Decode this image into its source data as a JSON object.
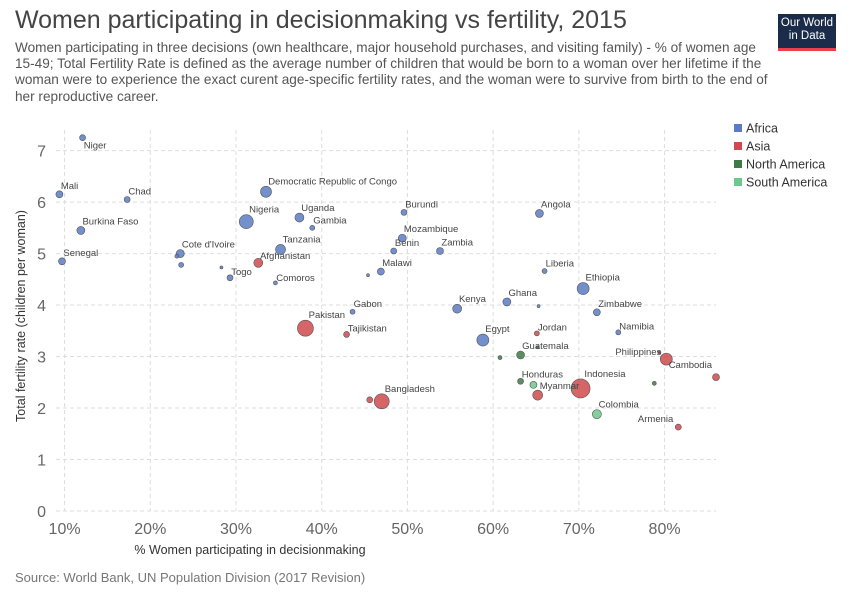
{
  "header": {
    "title": "Women participating in decisionmaking vs fertility, 2015",
    "subtitle": "Women participating in three decisions (own healthcare, major household purchases, and visiting family) - % of women age 15-49; Total Fertility Rate is defined as the average number of children that would be born to a woman over her lifetime if the woman were to experience the exact curent age-specific fertility rates, and the woman were to survive from birth to the end of her reproductive career.",
    "logo_line1": "Our World",
    "logo_line2": "in Data"
  },
  "footer": {
    "source": "Source: World Bank, UN Population Division (2017 Revision)"
  },
  "colors": {
    "Africa": "#5b7cc4",
    "Asia": "#cf4a4e",
    "North America": "#3f7a44",
    "South America": "#6cc98b"
  },
  "chart_data": {
    "type": "scatter",
    "xlabel": "% Women participating in decisionmaking",
    "ylabel": "Total fertility rate (children per woman)",
    "xlim": [
      9,
      86
    ],
    "ylim": [
      0,
      7.4
    ],
    "x_ticks": [
      10,
      20,
      30,
      40,
      50,
      60,
      70,
      80
    ],
    "x_tick_labels": [
      "10%",
      "20%",
      "30%",
      "40%",
      "50%",
      "60%",
      "70%",
      "80%"
    ],
    "y_ticks": [
      0,
      1,
      2,
      3,
      4,
      5,
      6,
      7
    ],
    "y_tick_labels": [
      "0",
      "1",
      "2",
      "3",
      "4",
      "5",
      "6",
      "7"
    ],
    "grid": true,
    "legend": {
      "placement": "right",
      "entries": [
        "Africa",
        "Asia",
        "North America",
        "South America"
      ]
    },
    "points": [
      {
        "label": "Niger",
        "x": 12.1,
        "y": 7.25,
        "group": "Africa",
        "size": 3
      },
      {
        "label": "Mali",
        "x": 9.4,
        "y": 6.15,
        "group": "Africa",
        "size": 3.5
      },
      {
        "label": "Chad",
        "x": 17.3,
        "y": 6.05,
        "group": "Africa",
        "size": 3
      },
      {
        "label": "Burkina Faso",
        "x": 11.9,
        "y": 5.45,
        "group": "Africa",
        "size": 4
      },
      {
        "label": "Senegal",
        "x": 9.7,
        "y": 4.85,
        "group": "Africa",
        "size": 3.5
      },
      {
        "label": "Cote d'Ivoire",
        "x": 23.5,
        "y": 5.0,
        "group": "Africa",
        "size": 4
      },
      {
        "label": "",
        "x": 23.1,
        "y": 4.95,
        "group": "Africa",
        "size": 2
      },
      {
        "label": "",
        "x": 23.6,
        "y": 4.78,
        "group": "Africa",
        "size": 2.5
      },
      {
        "label": "",
        "x": 28.3,
        "y": 4.73,
        "group": "Africa",
        "size": 1.5
      },
      {
        "label": "Togo",
        "x": 29.3,
        "y": 4.53,
        "group": "Africa",
        "size": 3
      },
      {
        "label": "Afghanistan",
        "x": 32.6,
        "y": 4.82,
        "group": "Asia",
        "size": 4.5
      },
      {
        "label": "Nigeria",
        "x": 31.2,
        "y": 5.62,
        "group": "Africa",
        "size": 7
      },
      {
        "label": "Democratic Republic of Congo",
        "x": 33.5,
        "y": 6.2,
        "group": "Africa",
        "size": 5.5
      },
      {
        "label": "Tanzania",
        "x": 35.2,
        "y": 5.08,
        "group": "Africa",
        "size": 5
      },
      {
        "label": "Comoros",
        "x": 34.6,
        "y": 4.43,
        "group": "Africa",
        "size": 2
      },
      {
        "label": "Uganda",
        "x": 37.4,
        "y": 5.7,
        "group": "Africa",
        "size": 4.5
      },
      {
        "label": "Gambia",
        "x": 38.9,
        "y": 5.5,
        "group": "Africa",
        "size": 2.5
      },
      {
        "label": "Gabon",
        "x": 43.6,
        "y": 3.87,
        "group": "Africa",
        "size": 2.5
      },
      {
        "label": "Pakistan",
        "x": 38.1,
        "y": 3.55,
        "group": "Asia",
        "size": 8
      },
      {
        "label": "Tajikistan",
        "x": 42.9,
        "y": 3.43,
        "group": "Asia",
        "size": 3
      },
      {
        "label": "",
        "x": 45.4,
        "y": 4.58,
        "group": "Africa",
        "size": 1.5
      },
      {
        "label": "Malawi",
        "x": 46.9,
        "y": 4.65,
        "group": "Africa",
        "size": 3.5
      },
      {
        "label": "Bangladesh",
        "x": 47.0,
        "y": 2.13,
        "group": "Asia",
        "size": 7.5
      },
      {
        "label": "",
        "x": 45.6,
        "y": 2.16,
        "group": "Asia",
        "size": 3
      },
      {
        "label": "Burundi",
        "x": 49.6,
        "y": 5.8,
        "group": "Africa",
        "size": 3
      },
      {
        "label": "Mozambique",
        "x": 49.4,
        "y": 5.3,
        "group": "Africa",
        "size": 4
      },
      {
        "label": "Benin",
        "x": 48.4,
        "y": 5.05,
        "group": "Africa",
        "size": 3
      },
      {
        "label": "Zambia",
        "x": 53.8,
        "y": 5.05,
        "group": "Africa",
        "size": 3.5
      },
      {
        "label": "Kenya",
        "x": 55.8,
        "y": 3.93,
        "group": "Africa",
        "size": 4.5
      },
      {
        "label": "Egypt",
        "x": 58.8,
        "y": 3.32,
        "group": "Africa",
        "size": 6
      },
      {
        "label": "Ghana",
        "x": 61.6,
        "y": 4.06,
        "group": "Africa",
        "size": 4
      },
      {
        "label": "",
        "x": 65.3,
        "y": 3.98,
        "group": "Africa",
        "size": 1.5
      },
      {
        "label": "Angola",
        "x": 65.4,
        "y": 5.78,
        "group": "Africa",
        "size": 4
      },
      {
        "label": "Liberia",
        "x": 66.0,
        "y": 4.66,
        "group": "Africa",
        "size": 2.5
      },
      {
        "label": "Jordan",
        "x": 65.1,
        "y": 3.45,
        "group": "Asia",
        "size": 2.5
      },
      {
        "label": "Guatemala",
        "x": 63.2,
        "y": 3.03,
        "group": "North America",
        "size": 4
      },
      {
        "label": "",
        "x": 60.8,
        "y": 2.98,
        "group": "North America",
        "size": 2
      },
      {
        "label": "",
        "x": 65.2,
        "y": 3.18,
        "group": "North America",
        "size": 1.5
      },
      {
        "label": "Honduras",
        "x": 63.2,
        "y": 2.52,
        "group": "North America",
        "size": 3
      },
      {
        "label": "",
        "x": 64.7,
        "y": 2.45,
        "group": "South America",
        "size": 3.5
      },
      {
        "label": "Myanmar",
        "x": 65.2,
        "y": 2.25,
        "group": "Asia",
        "size": 5
      },
      {
        "label": "Indonesia",
        "x": 70.2,
        "y": 2.38,
        "group": "Asia",
        "size": 9.5
      },
      {
        "label": "Ethiopia",
        "x": 70.5,
        "y": 4.32,
        "group": "Africa",
        "size": 6
      },
      {
        "label": "Zimbabwe",
        "x": 72.1,
        "y": 3.86,
        "group": "Africa",
        "size": 3.5
      },
      {
        "label": "Namibia",
        "x": 74.6,
        "y": 3.47,
        "group": "Africa",
        "size": 2.5
      },
      {
        "label": "Colombia",
        "x": 72.1,
        "y": 1.88,
        "group": "South America",
        "size": 4.5
      },
      {
        "label": "Philippines",
        "x": 80.2,
        "y": 2.95,
        "group": "Asia",
        "size": 6
      },
      {
        "label": "",
        "x": 79.4,
        "y": 3.08,
        "group": "Asia",
        "size": 1.5
      },
      {
        "label": "",
        "x": 78.8,
        "y": 2.48,
        "group": "North America",
        "size": 2
      },
      {
        "label": "Cambodia",
        "x": 86.0,
        "y": 2.6,
        "group": "Asia",
        "size": 3.5
      },
      {
        "label": "Armenia",
        "x": 81.6,
        "y": 1.63,
        "group": "Asia",
        "size": 3
      }
    ]
  }
}
